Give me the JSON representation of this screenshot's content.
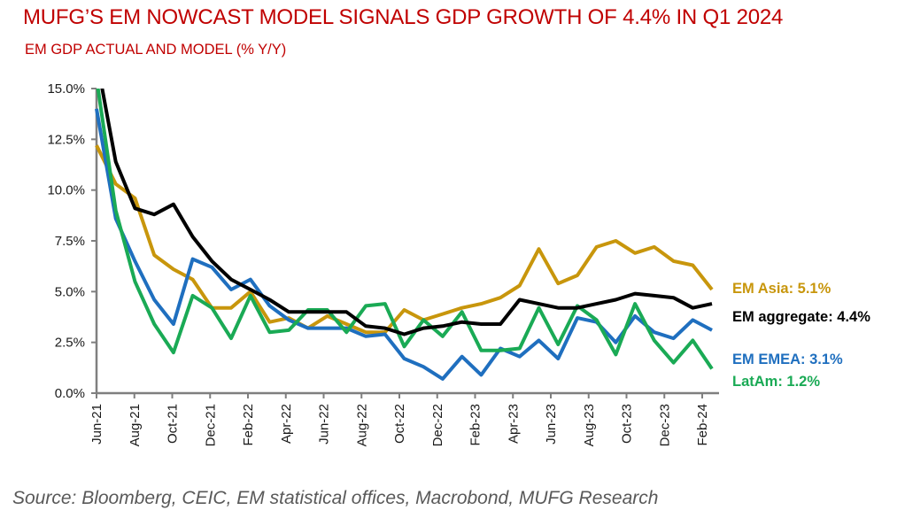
{
  "chart_data": {
    "type": "line",
    "title": "MUFG’S EM NOWCAST MODEL SIGNALS GDP GROWTH OF 4.4% IN Q1 2024",
    "subtitle": "EM GDP ACTUAL AND MODEL (% Y/Y)",
    "source": "Source: Bloomberg, CEIC, EM statistical offices, Macrobond, MUFG Research",
    "xlabel": "",
    "ylabel": "",
    "ylim": [
      0,
      15
    ],
    "yticks": [
      "0.0%",
      "2.5%",
      "5.0%",
      "7.5%",
      "10.0%",
      "12.5%",
      "15.0%"
    ],
    "ytick_values": [
      0,
      2.5,
      5,
      7.5,
      10,
      12.5,
      15
    ],
    "x": [
      "Jun-21",
      "Jul-21",
      "Aug-21",
      "Sep-21",
      "Oct-21",
      "Nov-21",
      "Dec-21",
      "Jan-22",
      "Feb-22",
      "Mar-22",
      "Apr-22",
      "May-22",
      "Jun-22",
      "Jul-22",
      "Aug-22",
      "Sep-22",
      "Oct-22",
      "Nov-22",
      "Dec-22",
      "Jan-23",
      "Feb-23",
      "Mar-23",
      "Apr-23",
      "May-23",
      "Jun-23",
      "Jul-23",
      "Aug-23",
      "Sep-23",
      "Oct-23",
      "Nov-23",
      "Dec-23",
      "Jan-24",
      "Feb-24"
    ],
    "xtick_labels": [
      "Jun-21",
      "Aug-21",
      "Oct-21",
      "Dec-21",
      "Feb-22",
      "Apr-22",
      "Jun-22",
      "Aug-22",
      "Oct-22",
      "Dec-22",
      "Feb-23",
      "Apr-23",
      "Jun-23",
      "Aug-23",
      "Oct-23",
      "Dec-23",
      "Feb-24"
    ],
    "grid": false,
    "legend_placement": "right",
    "series": [
      {
        "name": "EM Asia",
        "label": "EM Asia: 5.1%",
        "color": "#c8960c",
        "values": [
          12.2,
          10.3,
          9.6,
          6.8,
          6.1,
          5.6,
          4.2,
          4.2,
          5.0,
          3.5,
          3.7,
          3.2,
          3.8,
          3.4,
          3.0,
          3.0,
          4.1,
          3.6,
          3.9,
          4.2,
          4.4,
          4.7,
          5.3,
          7.1,
          5.4,
          5.8,
          7.2,
          7.5,
          6.9,
          7.2,
          6.5,
          6.3,
          5.1
        ]
      },
      {
        "name": "EM aggregate",
        "label": "EM aggregate: 4.4%",
        "color": "#000000",
        "values": [
          16.5,
          11.4,
          9.1,
          8.8,
          9.3,
          7.7,
          6.5,
          5.6,
          5.1,
          4.6,
          4.0,
          4.0,
          4.0,
          4.0,
          3.3,
          3.2,
          2.9,
          3.2,
          3.3,
          3.5,
          3.4,
          3.4,
          4.6,
          4.4,
          4.2,
          4.2,
          4.4,
          4.6,
          4.9,
          4.8,
          4.7,
          4.2,
          4.4
        ]
      },
      {
        "name": "EM EMEA",
        "label": "EM EMEA: 3.1%",
        "color": "#1f6fbf",
        "values": [
          14.0,
          8.6,
          6.5,
          4.6,
          3.4,
          6.6,
          6.2,
          5.1,
          5.6,
          4.3,
          3.6,
          3.2,
          3.2,
          3.2,
          2.8,
          2.9,
          1.7,
          1.3,
          0.7,
          1.8,
          0.9,
          2.2,
          1.8,
          2.6,
          1.7,
          3.7,
          3.5,
          2.5,
          3.8,
          3.0,
          2.7,
          3.6,
          3.1
        ]
      },
      {
        "name": "LatAm",
        "label": "LatAm: 1.2%",
        "color": "#1aaa55",
        "values": [
          15.5,
          9.0,
          5.5,
          3.4,
          2.0,
          4.8,
          4.2,
          2.7,
          4.8,
          3.0,
          3.1,
          4.1,
          4.1,
          3.0,
          4.3,
          4.4,
          2.3,
          3.6,
          2.8,
          4.0,
          2.1,
          2.1,
          2.2,
          4.2,
          2.4,
          4.3,
          3.6,
          1.9,
          4.4,
          2.6,
          1.5,
          2.6,
          1.2
        ]
      }
    ]
  }
}
